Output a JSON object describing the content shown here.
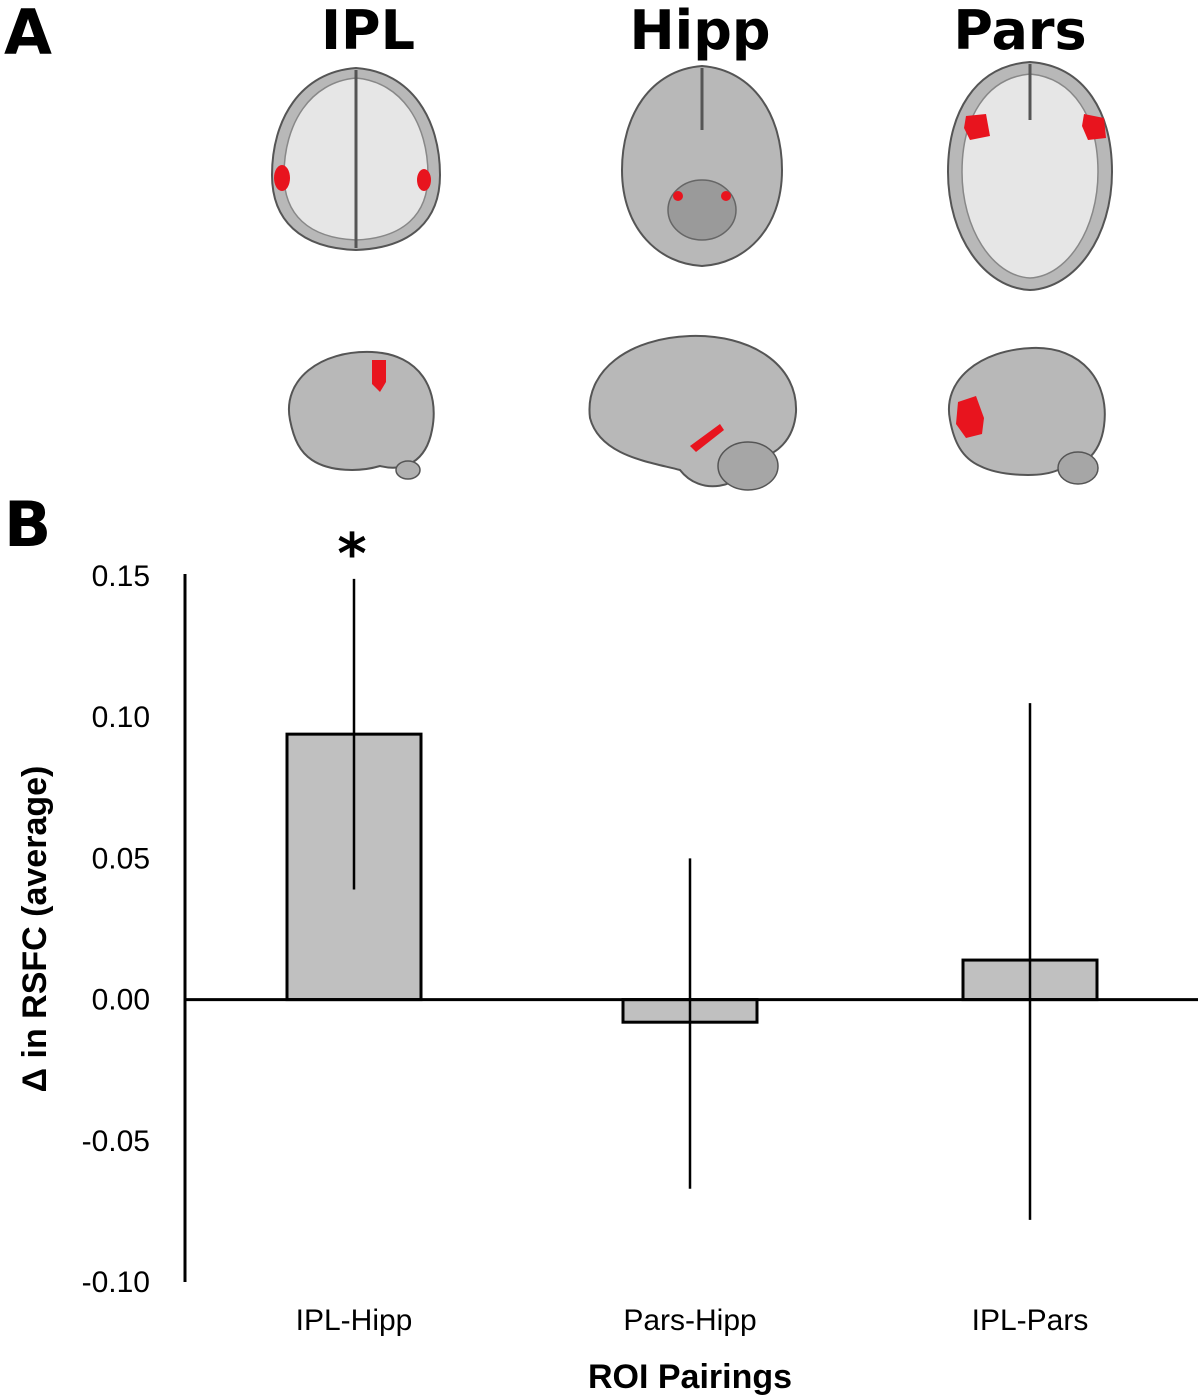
{
  "panels": {
    "a_label": "A",
    "b_label": "B"
  },
  "roi_titles": [
    "IPL",
    "Hipp",
    "Pars"
  ],
  "colors": {
    "roi_highlight": "#e8141e",
    "brain_gray": "#b5b5b5",
    "bar_fill": "#c0c0c0"
  },
  "chart_data": {
    "type": "bar",
    "categories": [
      "IPL-Hipp",
      "Pars-Hipp",
      "IPL-Pars"
    ],
    "values": [
      0.094,
      -0.008,
      0.014
    ],
    "error_upper": [
      0.149,
      0.05,
      0.105
    ],
    "error_lower": [
      0.039,
      -0.067,
      -0.078
    ],
    "significance": [
      "*",
      "",
      ""
    ],
    "xlabel": "ROI Pairings",
    "ylabel": "Δ in RSFC (average)",
    "ylim": [
      -0.1,
      0.15
    ],
    "yticks": [
      0.15,
      0.1,
      0.05,
      0.0,
      -0.05,
      -0.1
    ],
    "ytick_labels": [
      "0.15",
      "0.10",
      "0.05",
      "0.00",
      "-0.05",
      "-0.10"
    ]
  }
}
